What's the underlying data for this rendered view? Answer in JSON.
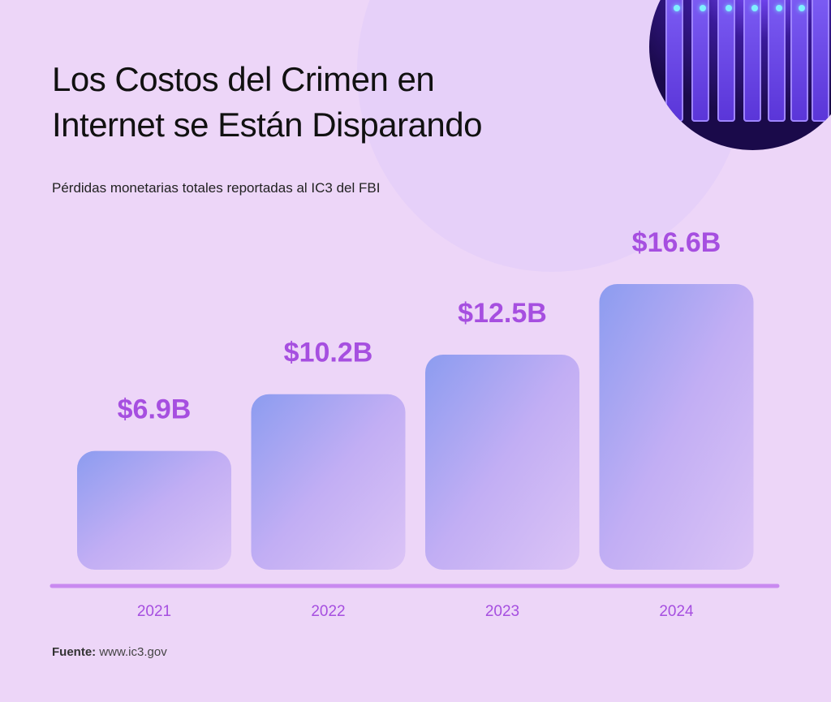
{
  "title_line1": "Los Costos del Crimen en",
  "title_line2": "Internet se Están Disparando",
  "subtitle": "Pérdidas monetarias totales reportadas al IC3 del FBI",
  "source_label": "Fuente:",
  "source_value": "www.ic3.gov",
  "colors": {
    "background": "#edd6f8",
    "value_label": "#a64fe0",
    "axis": "#c98af0",
    "bar_start": "#8c9cf0",
    "bar_end": "#dcc4f6"
  },
  "chart_data": {
    "type": "bar",
    "title": "Los Costos del Crimen en Internet se Están Disparando",
    "subtitle": "Pérdidas monetarias totales reportadas al IC3 del FBI",
    "categories": [
      "2021",
      "2022",
      "2023",
      "2024"
    ],
    "values": [
      6.9,
      10.2,
      12.5,
      16.6
    ],
    "data_labels": [
      "$6.9B",
      "$10.2B",
      "$12.5B",
      "$16.6B"
    ],
    "unit": "billion USD",
    "ylim": [
      0,
      16.6
    ],
    "grid": false,
    "legend": "none"
  }
}
